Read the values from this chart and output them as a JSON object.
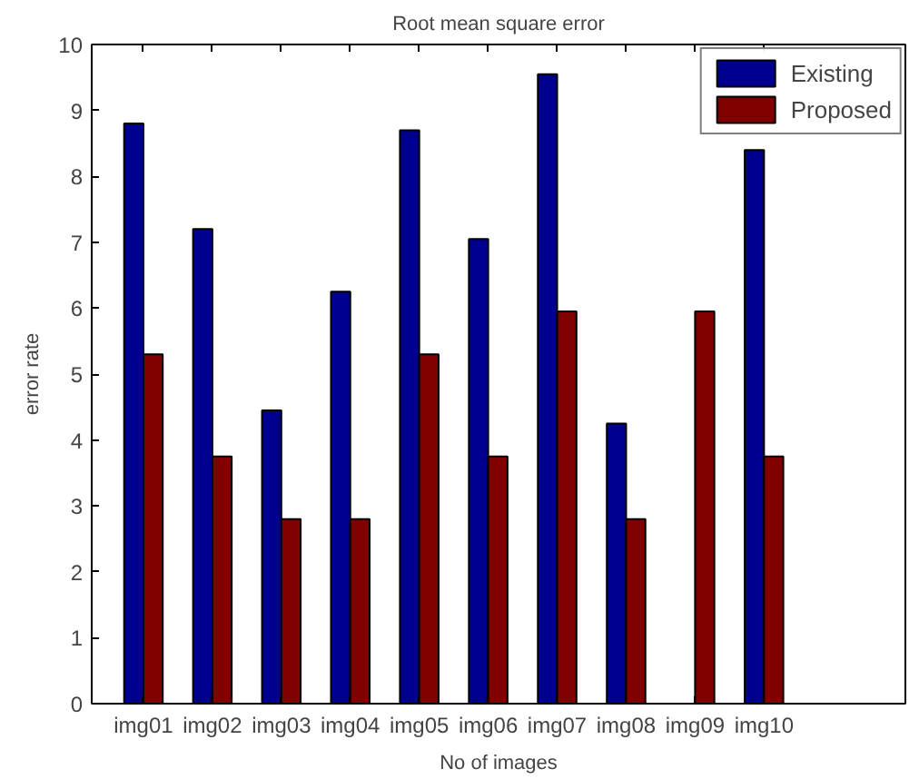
{
  "chart_data": {
    "type": "bar",
    "title": "Root mean square error",
    "xlabel": "No of images",
    "ylabel": "error rate",
    "categories": [
      "img01",
      "img02",
      "img03",
      "img04",
      "img05",
      "img06",
      "img07",
      "img08",
      "img09",
      "img10"
    ],
    "series": [
      {
        "name": "Existing",
        "color": "#00008f",
        "values": [
          8.8,
          7.2,
          4.45,
          6.25,
          8.7,
          7.05,
          9.55,
          4.25,
          null,
          8.4
        ]
      },
      {
        "name": "Proposed",
        "color": "#800000",
        "values": [
          5.3,
          3.75,
          2.8,
          2.8,
          5.3,
          3.75,
          5.95,
          2.8,
          5.95,
          3.75
        ]
      }
    ],
    "ylim": [
      0,
      10
    ],
    "yticks": [
      0,
      1,
      2,
      3,
      4,
      5,
      6,
      7,
      8,
      9,
      10
    ],
    "grid": false,
    "legend": "top right"
  }
}
